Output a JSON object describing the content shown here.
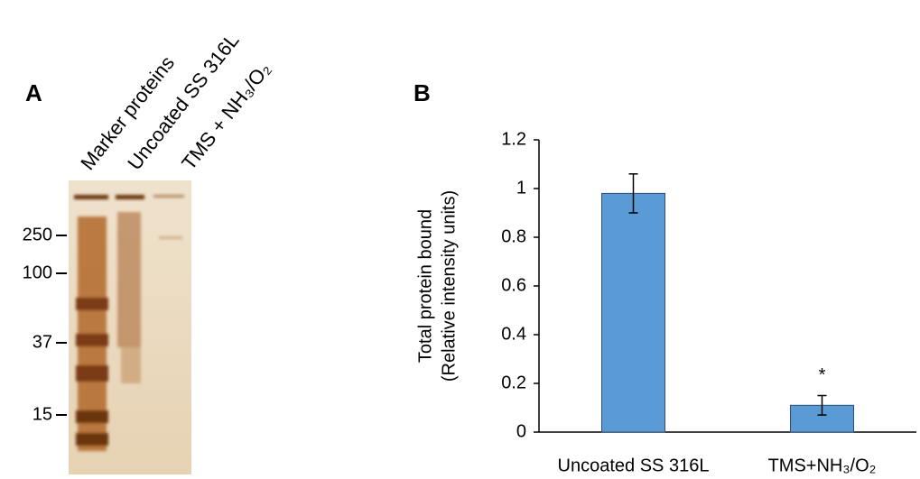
{
  "panel_a": {
    "label": "A",
    "lanes": [
      "Marker proteins",
      "Uncoated SS 316L",
      "TMS + NH₃/O₂"
    ],
    "markers": [
      250,
      100,
      37,
      15
    ]
  },
  "chart_data": {
    "type": "bar",
    "label": "B",
    "y_label": [
      "Total protein bound",
      "(Relative intensity units)"
    ],
    "categories": [
      "Uncoated SS 316L",
      "TMS+NH₃/O₂"
    ],
    "values": [
      0.98,
      0.11
    ],
    "errors": [
      0.08,
      0.04
    ],
    "color": "#5b9bd5",
    "ylim": [
      0,
      1.2
    ],
    "yticks": [
      0,
      0.2,
      0.4,
      0.6,
      0.8,
      1,
      1.2
    ],
    "annotations": [
      {
        "text": "*",
        "x": "TMS+NH₃/O₂"
      }
    ]
  }
}
